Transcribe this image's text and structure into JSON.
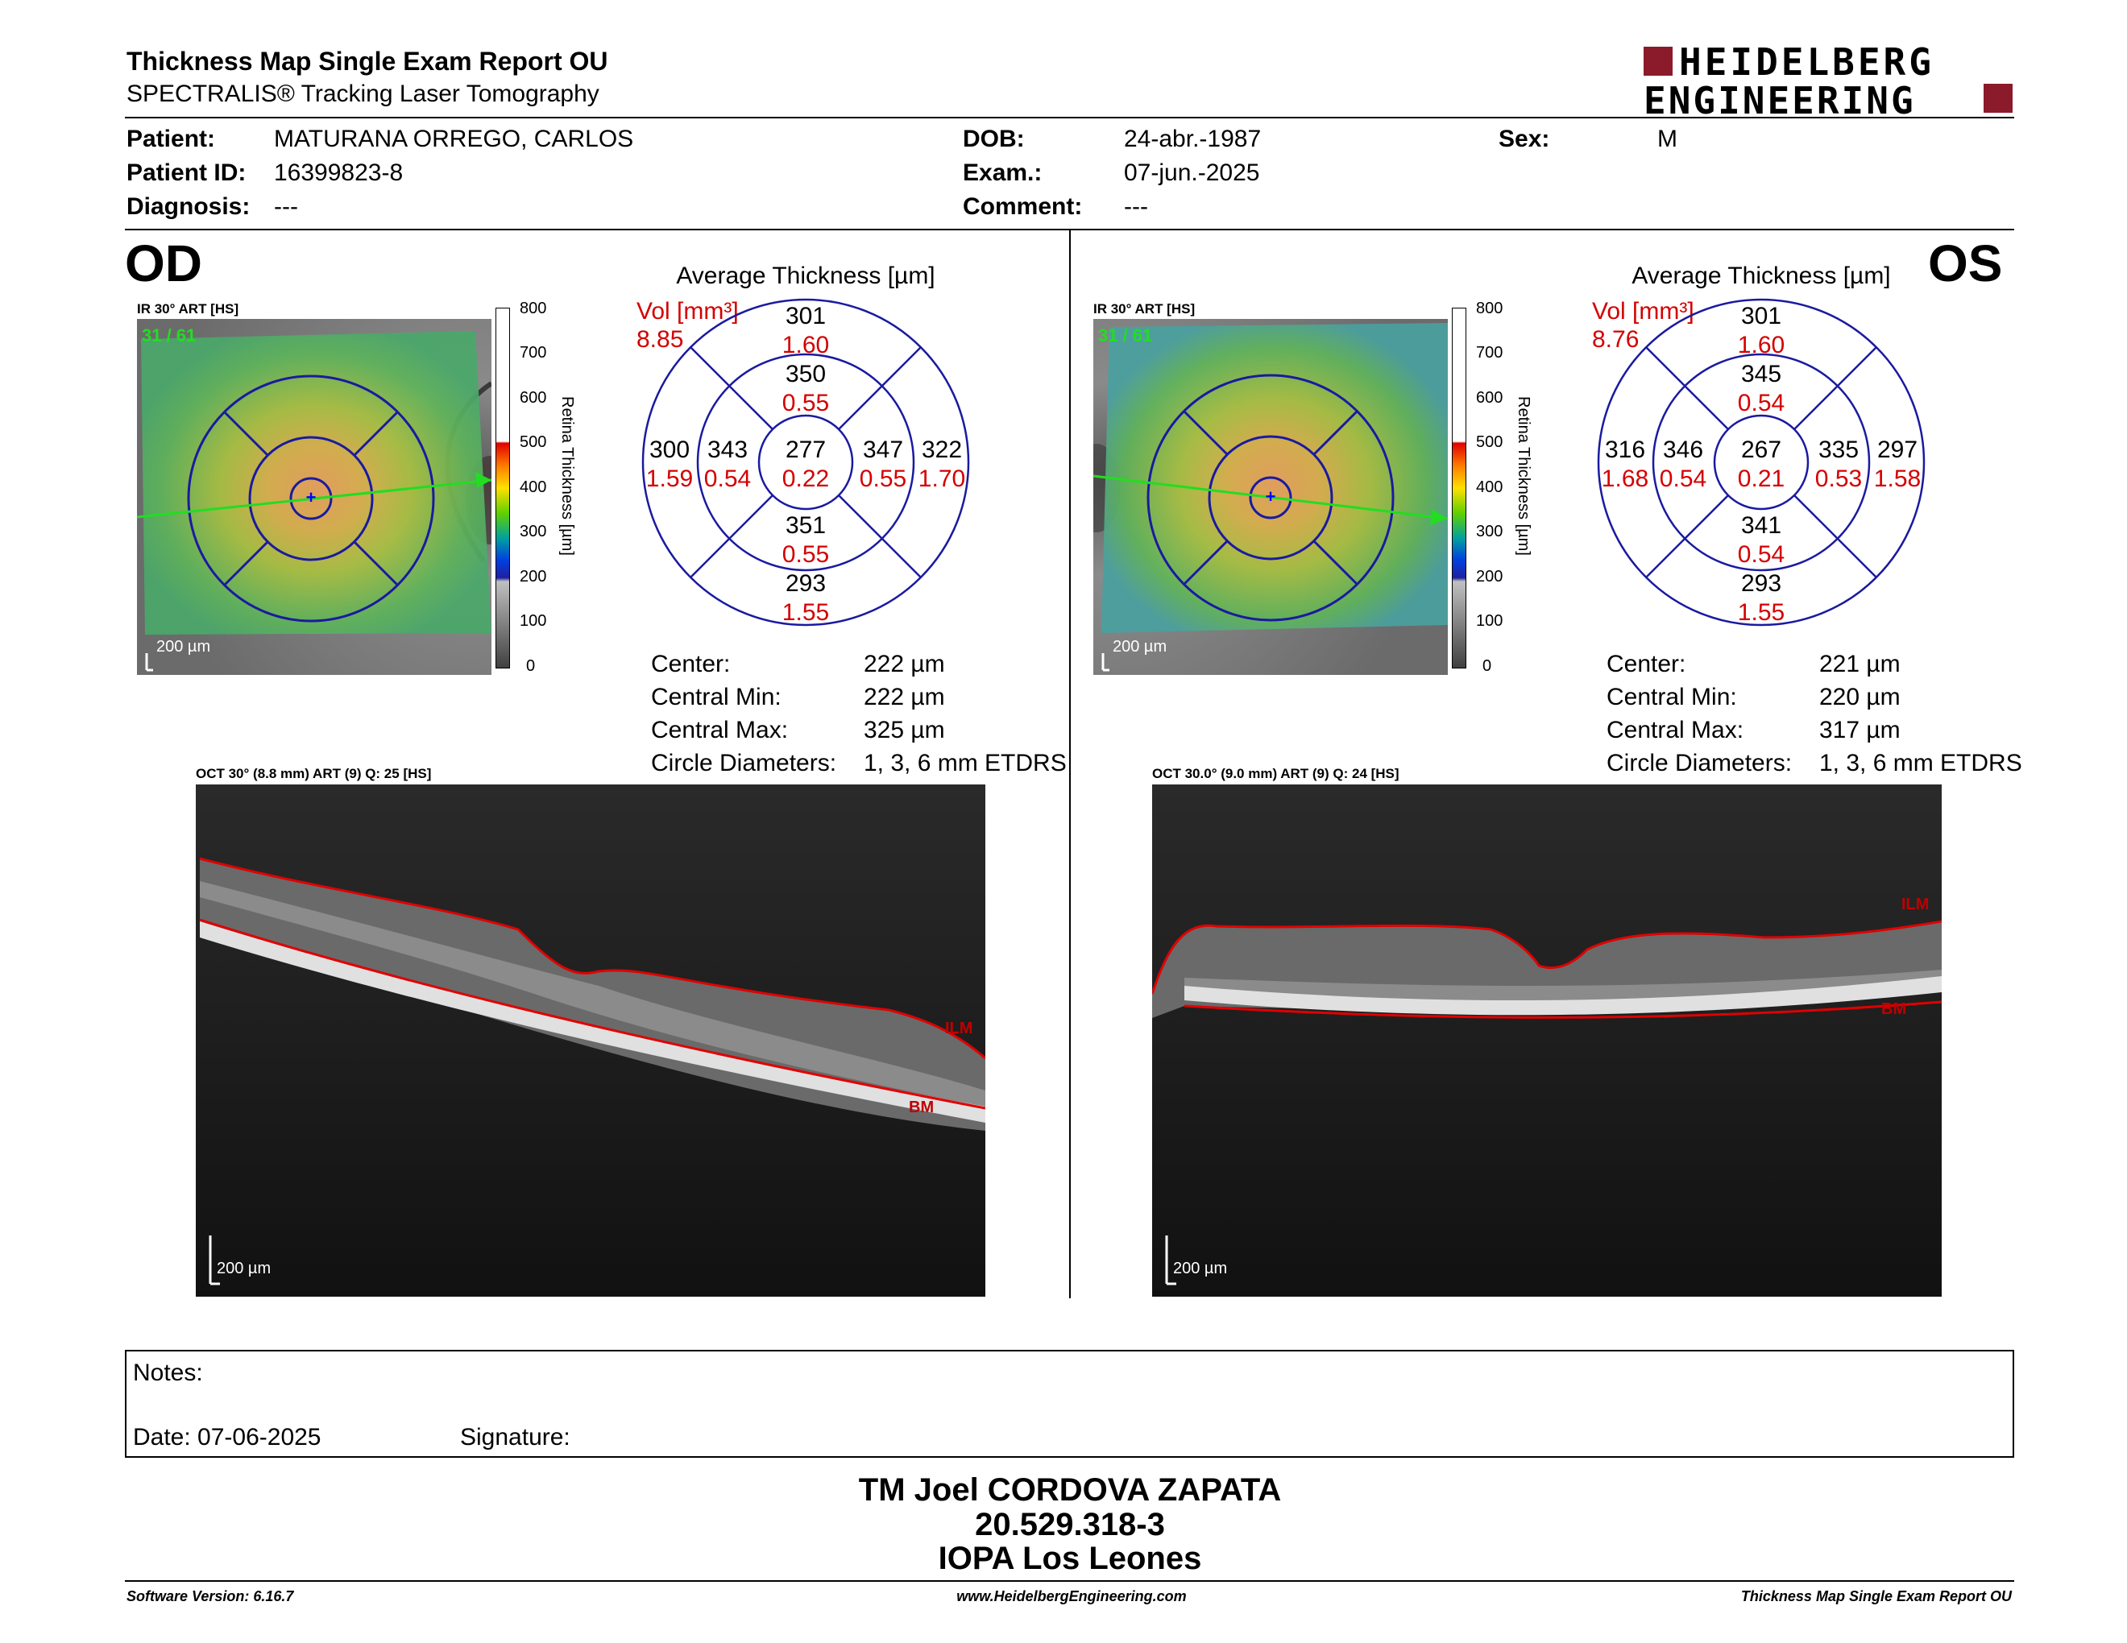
{
  "header": {
    "title": "Thickness Map Single Exam Report OU",
    "subtitle": "SPECTRALIS® Tracking Laser Tomography",
    "logo_line1": "HEIDELBERG",
    "logo_line2": "ENGINEERING",
    "brand_color": "#8b1a2b"
  },
  "patient": {
    "patient_label": "Patient:",
    "patient_value": "MATURANA ORREGO, CARLOS",
    "id_label": "Patient ID:",
    "id_value": "16399823-8",
    "diag_label": "Diagnosis:",
    "diag_value": "---",
    "dob_label": "DOB:",
    "dob_value": "24-abr.-1987",
    "exam_label": "Exam.:",
    "exam_value": "07-jun.-2025",
    "comment_label": "Comment:",
    "comment_value": "---",
    "sex_label": "Sex:",
    "sex_value": "M"
  },
  "colorbar": {
    "ticks": [
      "800",
      "700",
      "600",
      "500",
      "400",
      "300",
      "200",
      "100",
      "0"
    ],
    "label": "Retina Thickness [µm]"
  },
  "od": {
    "eye": "OD",
    "ir_caption": "IR 30° ART [HS]",
    "frame": "31 / 61",
    "scale": "200 µm",
    "chart_title": "Average Thickness [µm]",
    "vol_label": "Vol [mm³]",
    "vol_total": "8.85",
    "sectors": {
      "outer_sup": {
        "t": "301",
        "v": "1.60"
      },
      "inner_sup": {
        "t": "350",
        "v": "0.55"
      },
      "outer_temp": {
        "t": "300",
        "v": "1.59"
      },
      "inner_temp": {
        "t": "343",
        "v": "0.54"
      },
      "center": {
        "t": "277",
        "v": "0.22"
      },
      "inner_nas": {
        "t": "347",
        "v": "0.55"
      },
      "outer_nas": {
        "t": "322",
        "v": "1.70"
      },
      "inner_inf": {
        "t": "351",
        "v": "0.55"
      },
      "outer_inf": {
        "t": "293",
        "v": "1.55"
      }
    },
    "stats": [
      {
        "label": "Center:",
        "value": "222 µm"
      },
      {
        "label": "Central Min:",
        "value": "222 µm"
      },
      {
        "label": "Central Max:",
        "value": "325 µm"
      },
      {
        "label": "Circle Diameters:",
        "value": "1, 3, 6 mm ETDRS"
      }
    ],
    "oct_caption": "OCT 30° (8.8 mm) ART (9) Q: 25 [HS]",
    "oct_scale": "200 µm",
    "ilm": "ILM",
    "bm": "BM"
  },
  "os": {
    "eye": "OS",
    "ir_caption": "IR 30° ART [HS]",
    "frame": "31 / 61",
    "scale": "200 µm",
    "chart_title": "Average Thickness [µm]",
    "vol_label": "Vol [mm³]",
    "vol_total": "8.76",
    "sectors": {
      "outer_sup": {
        "t": "301",
        "v": "1.60"
      },
      "inner_sup": {
        "t": "345",
        "v": "0.54"
      },
      "outer_temp": {
        "t": "297",
        "v": "1.58"
      },
      "inner_temp": {
        "t": "335",
        "v": "0.53"
      },
      "center": {
        "t": "267",
        "v": "0.21"
      },
      "inner_nas": {
        "t": "346",
        "v": "0.54"
      },
      "outer_nas": {
        "t": "316",
        "v": "1.68"
      },
      "inner_inf": {
        "t": "341",
        "v": "0.54"
      },
      "outer_inf": {
        "t": "293",
        "v": "1.55"
      }
    },
    "stats": [
      {
        "label": "Center:",
        "value": "221 µm"
      },
      {
        "label": "Central Min:",
        "value": "220 µm"
      },
      {
        "label": "Central Max:",
        "value": "317 µm"
      },
      {
        "label": "Circle Diameters:",
        "value": "1, 3, 6 mm ETDRS"
      }
    ],
    "oct_caption": "OCT 30.0° (9.0 mm) ART (9) Q: 24 [HS]",
    "oct_scale": "200 µm",
    "ilm": "ILM",
    "bm": "BM"
  },
  "notes": {
    "notes_label": "Notes:",
    "date_label": "Date: 07-06-2025",
    "signature_label": "Signature:"
  },
  "signatory": {
    "name": "TM Joel CORDOVA ZAPATA",
    "id": "20.529.318-3",
    "place": "IOPA Los Leones"
  },
  "footer": {
    "software": "Software Version: 6.16.7",
    "website": "www.HeidelbergEngineering.com",
    "report": "Thickness Map Single Exam Report OU"
  }
}
